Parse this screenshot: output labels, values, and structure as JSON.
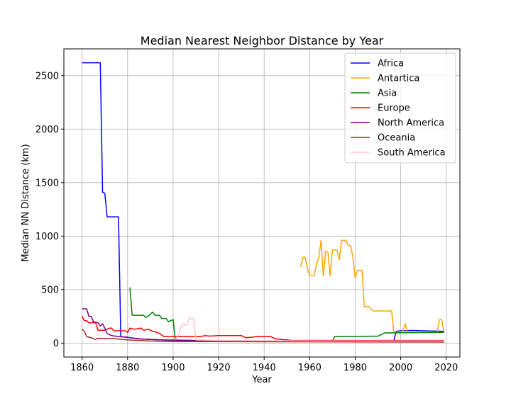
{
  "chart_data": {
    "type": "line",
    "title": "Median Nearest Neighbor Distance by Year",
    "xlabel": "Year",
    "ylabel": "Median NN Distance (km)",
    "xlim": [
      1852,
      2026
    ],
    "ylim": [
      -130,
      2750
    ],
    "xticks": [
      1860,
      1880,
      1900,
      1920,
      1940,
      1960,
      1980,
      2000,
      2020
    ],
    "yticks": [
      0,
      500,
      1000,
      1500,
      2000,
      2500
    ],
    "grid": true,
    "legend_position": "top-right",
    "series": [
      {
        "name": "Africa",
        "color": "#0000ff",
        "points": [
          [
            1860,
            2620
          ],
          [
            1868,
            2620
          ],
          [
            1869,
            1410
          ],
          [
            1870,
            1400
          ],
          [
            1871,
            1180
          ],
          [
            1876,
            1180
          ],
          [
            1877,
            60
          ],
          [
            1885,
            40
          ],
          [
            1890,
            35
          ],
          [
            1895,
            30
          ],
          [
            1900,
            28
          ],
          [
            1910,
            25
          ],
          [
            1920,
            22
          ],
          [
            1940,
            20
          ],
          [
            1960,
            18
          ],
          [
            1980,
            20
          ],
          [
            1997,
            25
          ],
          [
            1998,
            110
          ],
          [
            2000,
            115
          ],
          [
            2005,
            118
          ],
          [
            2010,
            115
          ],
          [
            2019,
            110
          ]
        ]
      },
      {
        "name": "Antartica",
        "color": "#ffa500",
        "points": [
          [
            1956,
            710
          ],
          [
            1957,
            800
          ],
          [
            1958,
            800
          ],
          [
            1959,
            700
          ],
          [
            1960,
            630
          ],
          [
            1962,
            630
          ],
          [
            1963,
            740
          ],
          [
            1964,
            800
          ],
          [
            1965,
            960
          ],
          [
            1966,
            630
          ],
          [
            1967,
            860
          ],
          [
            1968,
            850
          ],
          [
            1969,
            630
          ],
          [
            1970,
            870
          ],
          [
            1972,
            870
          ],
          [
            1973,
            780
          ],
          [
            1974,
            960
          ],
          [
            1976,
            960
          ],
          [
            1977,
            910
          ],
          [
            1978,
            910
          ],
          [
            1979,
            800
          ],
          [
            1980,
            610
          ],
          [
            1981,
            680
          ],
          [
            1983,
            680
          ],
          [
            1984,
            340
          ],
          [
            1986,
            340
          ],
          [
            1988,
            300
          ],
          [
            1996,
            300
          ],
          [
            1997,
            100
          ],
          [
            2001,
            110
          ],
          [
            2002,
            180
          ],
          [
            2003,
            100
          ],
          [
            2016,
            100
          ],
          [
            2017,
            220
          ],
          [
            2018,
            220
          ],
          [
            2019,
            100
          ]
        ]
      },
      {
        "name": "Asia",
        "color": "#008000",
        "points": [
          [
            1881,
            520
          ],
          [
            1882,
            260
          ],
          [
            1887,
            260
          ],
          [
            1888,
            240
          ],
          [
            1889,
            250
          ],
          [
            1891,
            290
          ],
          [
            1892,
            260
          ],
          [
            1894,
            260
          ],
          [
            1895,
            230
          ],
          [
            1897,
            230
          ],
          [
            1898,
            200
          ],
          [
            1899,
            210
          ],
          [
            1900,
            220
          ],
          [
            1901,
            20
          ],
          [
            1930,
            20
          ],
          [
            1970,
            20
          ],
          [
            1971,
            60
          ],
          [
            1990,
            65
          ],
          [
            1993,
            95
          ],
          [
            2019,
            100
          ]
        ]
      },
      {
        "name": "Europe",
        "color": "#ff0000",
        "points": [
          [
            1860,
            250
          ],
          [
            1861,
            210
          ],
          [
            1862,
            210
          ],
          [
            1863,
            190
          ],
          [
            1866,
            190
          ],
          [
            1867,
            120
          ],
          [
            1870,
            120
          ],
          [
            1872,
            140
          ],
          [
            1873,
            140
          ],
          [
            1874,
            115
          ],
          [
            1879,
            115
          ],
          [
            1880,
            100
          ],
          [
            1881,
            140
          ],
          [
            1883,
            130
          ],
          [
            1886,
            140
          ],
          [
            1887,
            120
          ],
          [
            1889,
            130
          ],
          [
            1891,
            110
          ],
          [
            1893,
            100
          ],
          [
            1894,
            90
          ],
          [
            1896,
            60
          ],
          [
            1912,
            60
          ],
          [
            1914,
            70
          ],
          [
            1916,
            65
          ],
          [
            1920,
            70
          ],
          [
            1930,
            70
          ],
          [
            1932,
            50
          ],
          [
            1935,
            55
          ],
          [
            1936,
            60
          ],
          [
            1943,
            60
          ],
          [
            1945,
            40
          ],
          [
            1950,
            30
          ],
          [
            1952,
            25
          ],
          [
            1970,
            25
          ],
          [
            2019,
            25
          ]
        ]
      },
      {
        "name": "North America",
        "color": "#800080",
        "points": [
          [
            1860,
            320
          ],
          [
            1862,
            320
          ],
          [
            1863,
            250
          ],
          [
            1864,
            250
          ],
          [
            1865,
            200
          ],
          [
            1867,
            190
          ],
          [
            1868,
            160
          ],
          [
            1869,
            180
          ],
          [
            1870,
            140
          ],
          [
            1871,
            90
          ],
          [
            1873,
            70
          ],
          [
            1876,
            60
          ],
          [
            1880,
            55
          ],
          [
            1885,
            40
          ],
          [
            1890,
            35
          ],
          [
            1900,
            25
          ],
          [
            1920,
            20
          ],
          [
            1950,
            15
          ],
          [
            1980,
            15
          ],
          [
            2000,
            15
          ],
          [
            2019,
            10
          ]
        ]
      },
      {
        "name": "Oceania",
        "color": "#a52a2a",
        "points": [
          [
            1860,
            130
          ],
          [
            1861,
            110
          ],
          [
            1862,
            60
          ],
          [
            1864,
            50
          ],
          [
            1865,
            40
          ],
          [
            1866,
            35
          ],
          [
            1867,
            45
          ],
          [
            1875,
            40
          ],
          [
            1880,
            30
          ],
          [
            1890,
            20
          ],
          [
            1900,
            15
          ],
          [
            1950,
            12
          ],
          [
            2000,
            10
          ],
          [
            2019,
            10
          ]
        ]
      },
      {
        "name": "South America",
        "color": "#ffc0cb",
        "points": [
          [
            1901,
            30
          ],
          [
            1902,
            60
          ],
          [
            1903,
            120
          ],
          [
            1904,
            170
          ],
          [
            1906,
            170
          ],
          [
            1907,
            230
          ],
          [
            1909,
            230
          ],
          [
            1910,
            30
          ],
          [
            1920,
            25
          ],
          [
            1960,
            20
          ],
          [
            2019,
            20
          ]
        ]
      }
    ]
  }
}
